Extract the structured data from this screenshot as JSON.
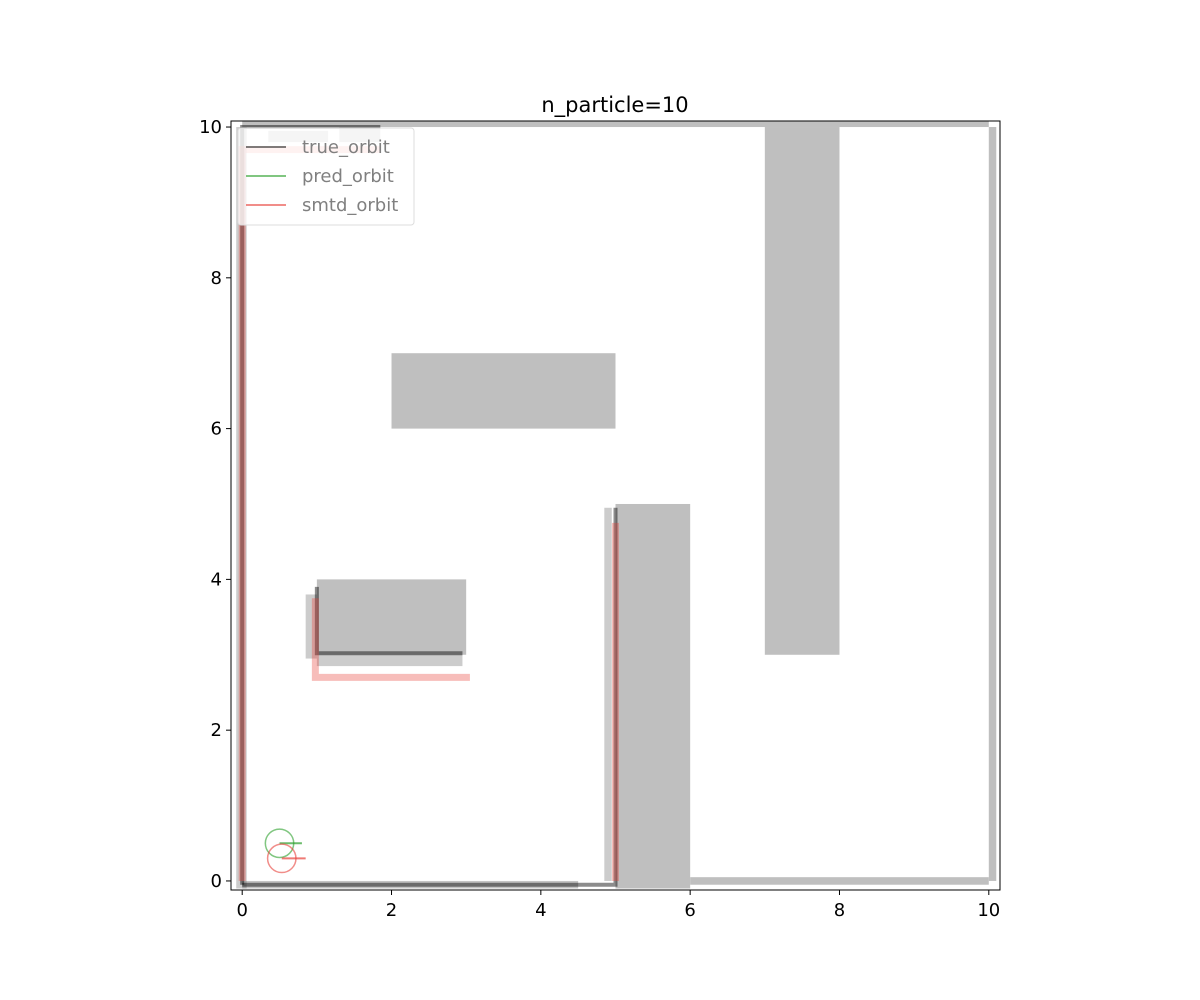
{
  "chart_data": {
    "type": "line",
    "title": "n_particle=10",
    "xlabel": "",
    "ylabel": "",
    "xlim": [
      -0.15,
      10.15
    ],
    "ylim": [
      -0.12,
      10.08
    ],
    "x_ticks": [
      "0",
      "2",
      "4",
      "6",
      "8",
      "10"
    ],
    "y_ticks": [
      "0",
      "2",
      "4",
      "6",
      "8",
      "10"
    ],
    "grid": false,
    "legend": {
      "placement": "upper-left",
      "entries": [
        {
          "name": "true_orbit",
          "color": "#000000"
        },
        {
          "name": "pred_orbit",
          "color": "#2ca02c"
        },
        {
          "name": "smtd_orbit",
          "color": "#e8413a"
        }
      ]
    },
    "obstacles": [
      {
        "x0": 0.0,
        "x1": 10.0,
        "y0": 10.0,
        "y1": 10.08
      },
      {
        "x0": 10.0,
        "x1": 10.1,
        "y0": 0.0,
        "y1": 10.0
      },
      {
        "x0": 6.0,
        "x1": 10.0,
        "y0": -0.05,
        "y1": 0.05
      },
      {
        "x0": 2.0,
        "x1": 5.0,
        "y0": 6.0,
        "y1": 7.0
      },
      {
        "x0": 7.0,
        "x1": 8.0,
        "y0": 3.0,
        "y1": 10.0
      },
      {
        "x0": 5.0,
        "x1": 6.0,
        "y0": -0.1,
        "y1": 5.0
      },
      {
        "x0": 1.0,
        "x1": 3.0,
        "y0": 3.0,
        "y1": 4.0
      }
    ],
    "laser_scan_hits": [
      {
        "x0": -0.08,
        "x1": 0.06,
        "y0": -0.1,
        "y1": 10.0,
        "opacity": 0.3
      },
      {
        "x0": 0.0,
        "x1": 4.5,
        "y0": -0.1,
        "y1": 0.0,
        "opacity": 0.35
      },
      {
        "x0": 0.35,
        "x1": 1.15,
        "y0": 9.8,
        "y1": 9.95,
        "opacity": 0.3
      },
      {
        "x0": 1.3,
        "x1": 1.85,
        "y0": 9.8,
        "y1": 10.0,
        "opacity": 0.3
      },
      {
        "x0": 4.85,
        "x1": 4.95,
        "y0": 0.0,
        "y1": 4.95,
        "opacity": 0.3
      },
      {
        "x0": 0.85,
        "x1": 1.0,
        "y0": 2.95,
        "y1": 3.8,
        "opacity": 0.3
      },
      {
        "x0": 1.0,
        "x1": 2.95,
        "y0": 2.85,
        "y1": 3.0,
        "opacity": 0.3
      }
    ],
    "series": [
      {
        "name": "true_orbit",
        "color": "#000000",
        "segments": [
          [
            [
              0.0,
              -0.05
            ],
            [
              0.0,
              10.0
            ],
            [
              1.85,
              10.0
            ]
          ],
          [
            [
              0.0,
              -0.05
            ],
            [
              5.0,
              -0.05
            ],
            [
              5.0,
              4.95
            ]
          ],
          [
            [
              1.0,
              3.9
            ],
            [
              1.0,
              3.02
            ],
            [
              2.95,
              3.02
            ]
          ]
        ]
      },
      {
        "name": "pred_orbit",
        "color": "#2ca02c",
        "marker": {
          "x": 0.5,
          "y": 0.5,
          "radius": 0.19,
          "heading": [
            0.8,
            0.5
          ]
        }
      },
      {
        "name": "smtd_orbit",
        "color": "#e8413a",
        "segments": [
          [
            [
              0.0,
              0.0
            ],
            [
              0.0,
              9.7
            ],
            [
              1.85,
              9.7
            ]
          ],
          [
            [
              5.0,
              0.0
            ],
            [
              5.0,
              4.75
            ]
          ],
          [
            [
              0.98,
              3.75
            ],
            [
              0.98,
              2.7
            ],
            [
              3.05,
              2.7
            ]
          ]
        ],
        "marker": {
          "x": 0.53,
          "y": 0.3,
          "radius": 0.19,
          "heading": [
            0.85,
            0.3
          ]
        }
      }
    ]
  }
}
